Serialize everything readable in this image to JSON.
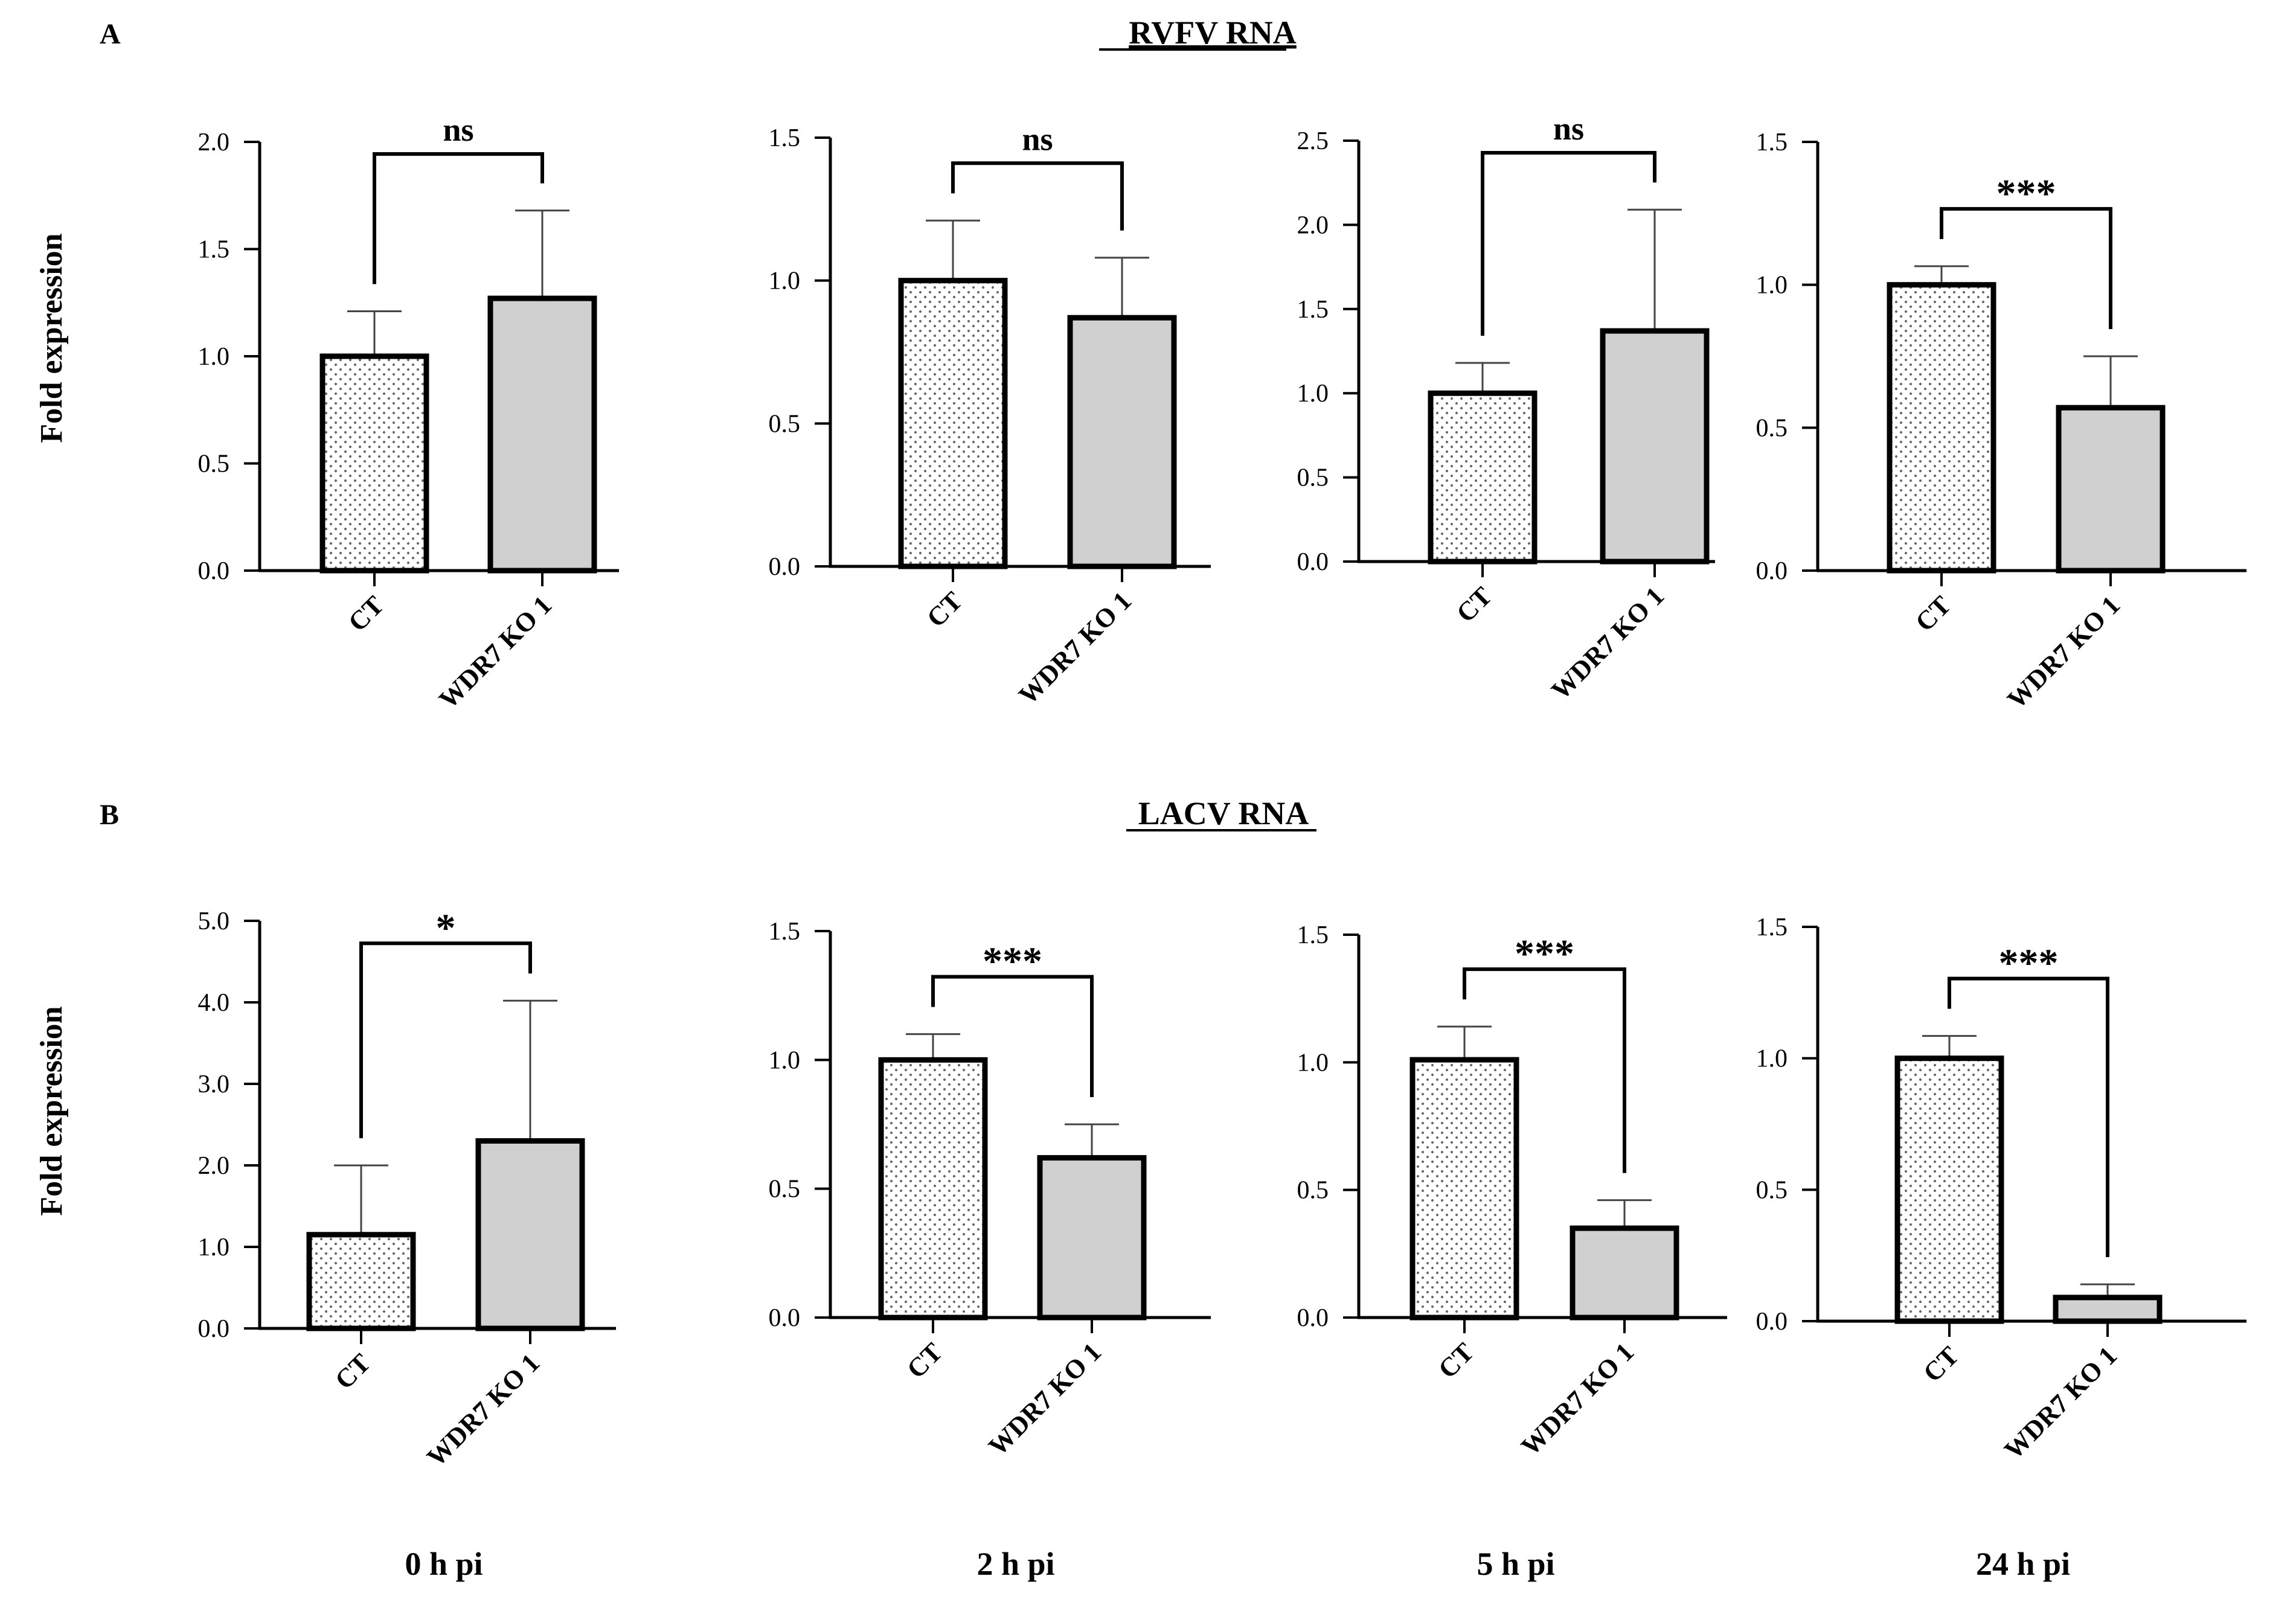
{
  "figure": {
    "panel_a_letter": "A",
    "panel_a_title": "RVFV RNA",
    "panel_b_letter": "B",
    "panel_b_title": "LACV RNA",
    "ylabel": "Fold expression",
    "timepoints": [
      "0 h pi",
      "2 h pi",
      "5 h pi",
      "24 h pi"
    ],
    "colors": {
      "ct_fill": "#ffffff",
      "ko_fill": "#d0d0d0",
      "stroke": "#000000",
      "dots": "#6a6a6a"
    }
  },
  "chart_data": [
    {
      "type": "bar",
      "panel": "A",
      "timepoint": "0 h pi",
      "categories": [
        "CT",
        "WDR7 KO 1"
      ],
      "values": [
        1.0,
        1.27
      ],
      "errors": [
        0.21,
        0.41
      ],
      "ylim": [
        0,
        2.0
      ],
      "yticks": [
        "0.0",
        "0.5",
        "1.0",
        "1.5",
        "2.0"
      ],
      "significance": "ns"
    },
    {
      "type": "bar",
      "panel": "A",
      "timepoint": "2 h pi",
      "categories": [
        "CT",
        "WDR7 KO 1"
      ],
      "values": [
        1.0,
        0.87
      ],
      "errors": [
        0.21,
        0.21
      ],
      "ylim": [
        0,
        1.5
      ],
      "yticks": [
        "0.0",
        "0.5",
        "1.0",
        "1.5"
      ],
      "significance": "ns"
    },
    {
      "type": "bar",
      "panel": "A",
      "timepoint": "5 h pi",
      "categories": [
        "CT",
        "WDR7 KO 1"
      ],
      "values": [
        1.0,
        1.37
      ],
      "errors": [
        0.18,
        0.72
      ],
      "ylim": [
        0,
        2.5
      ],
      "yticks": [
        "0.0",
        "0.5",
        "1.0",
        "1.5",
        "2.0",
        "2.5"
      ],
      "significance": "ns"
    },
    {
      "type": "bar",
      "panel": "A",
      "timepoint": "24 h pi",
      "categories": [
        "CT",
        "WDR7 KO 1"
      ],
      "values": [
        1.0,
        0.57
      ],
      "errors": [
        0.065,
        0.18
      ],
      "ylim": [
        0,
        1.5
      ],
      "yticks": [
        "0.0",
        "0.5",
        "1.0",
        "1.5"
      ],
      "significance": "***"
    },
    {
      "type": "bar",
      "panel": "B",
      "timepoint": "0 h pi",
      "categories": [
        "CT",
        "WDR7 KO 1"
      ],
      "values": [
        1.15,
        2.3
      ],
      "errors": [
        0.85,
        1.72
      ],
      "ylim": [
        0,
        5.0
      ],
      "yticks": [
        "0.0",
        "1.0",
        "2.0",
        "3.0",
        "4.0",
        "5.0"
      ],
      "significance": "*"
    },
    {
      "type": "bar",
      "panel": "B",
      "timepoint": "2 h pi",
      "categories": [
        "CT",
        "WDR7 KO 1"
      ],
      "values": [
        1.0,
        0.62
      ],
      "errors": [
        0.1,
        0.13
      ],
      "ylim": [
        0,
        1.5
      ],
      "yticks": [
        "0.0",
        "0.5",
        "1.0",
        "1.5"
      ],
      "significance": "***"
    },
    {
      "type": "bar",
      "panel": "B",
      "timepoint": "5 h pi",
      "categories": [
        "CT",
        "WDR7 KO 1"
      ],
      "values": [
        1.01,
        0.35
      ],
      "errors": [
        0.13,
        0.11
      ],
      "ylim": [
        0,
        1.5
      ],
      "yticks": [
        "0.0",
        "0.5",
        "1.0",
        "1.5"
      ],
      "significance": "***"
    },
    {
      "type": "bar",
      "panel": "B",
      "timepoint": "24 h pi",
      "categories": [
        "CT",
        "WDR7 KO 1"
      ],
      "values": [
        1.0,
        0.09
      ],
      "errors": [
        0.085,
        0.05
      ],
      "ylim": [
        0,
        1.5
      ],
      "yticks": [
        "0.0",
        "0.5",
        "1.0",
        "1.5"
      ],
      "significance": "***"
    }
  ]
}
